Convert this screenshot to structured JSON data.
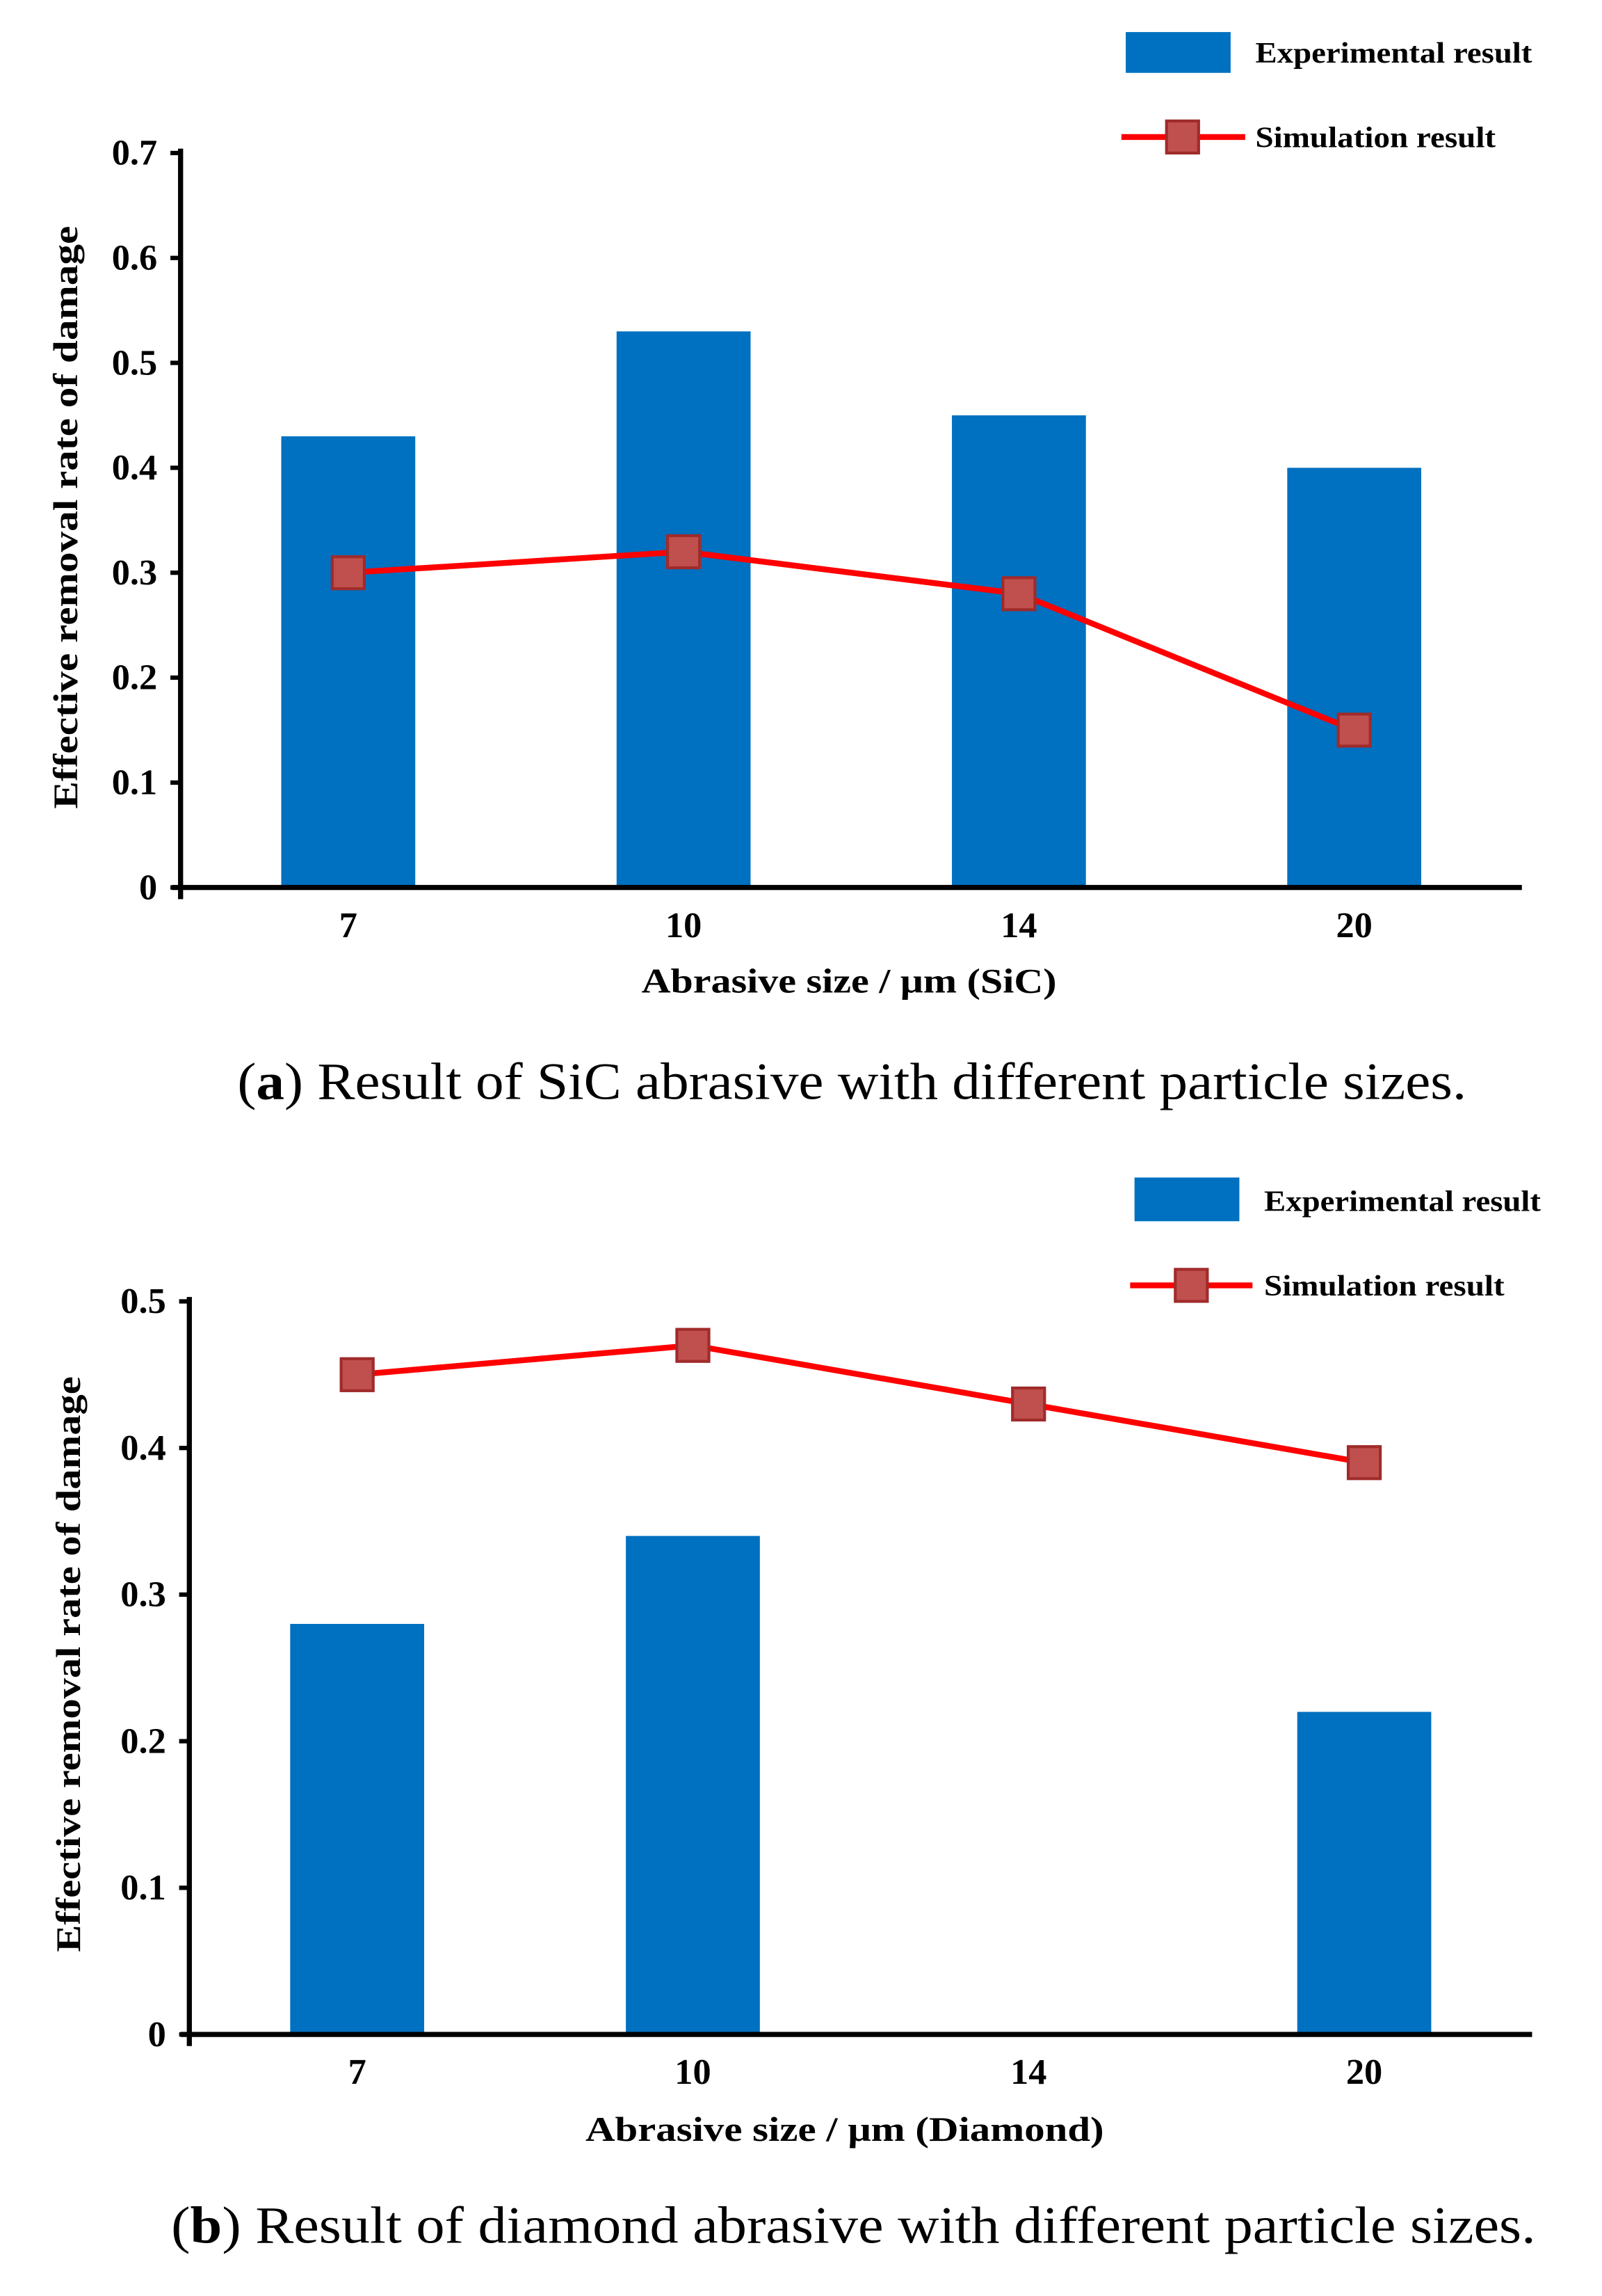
{
  "chart_data": [
    {
      "type": "bar",
      "title": "",
      "categories": [
        "7",
        "10",
        "14",
        "20"
      ],
      "series": [
        {
          "name": "Experimental result",
          "type": "bar",
          "values": [
            0.43,
            0.53,
            0.45,
            0.4
          ],
          "color": "#0070C0"
        },
        {
          "name": "Simulation result",
          "type": "line",
          "values": [
            0.3,
            0.32,
            0.28,
            0.15
          ],
          "color": "#FF0000",
          "marker": "square",
          "marker_color": "#C0504D",
          "marker_edge": "#A02B2B"
        }
      ],
      "xlabel": "Abrasive size / μm (SiC)",
      "ylabel": "Effective removal rate of damage",
      "ylim": [
        0,
        0.7
      ],
      "yticks": [
        0,
        0.1,
        0.2,
        0.3,
        0.4,
        0.5,
        0.6,
        0.7
      ],
      "ytick_labels": [
        "0",
        "0.1",
        "0.2",
        "0.3",
        "0.4",
        "0.5",
        "0.6",
        "0.7"
      ],
      "grid": false,
      "legend": "top-right",
      "caption": {
        "open": "(",
        "label": "a",
        "close": ")",
        "text": "Result of SiC abrasive with different particle sizes."
      }
    },
    {
      "type": "bar",
      "title": "",
      "categories": [
        "7",
        "10",
        "14",
        "20"
      ],
      "series": [
        {
          "name": "Experimental result",
          "type": "bar",
          "values": [
            0.28,
            0.34,
            null,
            0.22
          ],
          "color": "#0070C0"
        },
        {
          "name": "Simulation result",
          "type": "line",
          "values": [
            0.45,
            0.47,
            0.43,
            0.39
          ],
          "color": "#FF0000",
          "marker": "square",
          "marker_color": "#C0504D",
          "marker_edge": "#A02B2B"
        }
      ],
      "xlabel": "Abrasive size / μm (Diamond)",
      "ylabel": "Effective removal rate of damage",
      "ylim": [
        0,
        0.5
      ],
      "yticks": [
        0,
        0.1,
        0.2,
        0.3,
        0.4,
        0.5
      ],
      "ytick_labels": [
        "0",
        "0.1",
        "0.2",
        "0.3",
        "0.4",
        "0.5"
      ],
      "grid": false,
      "legend": "top-right",
      "caption": {
        "open": "(",
        "label": "b",
        "close": ")",
        "text": "Result of diamond abrasive with different particle sizes."
      }
    }
  ]
}
